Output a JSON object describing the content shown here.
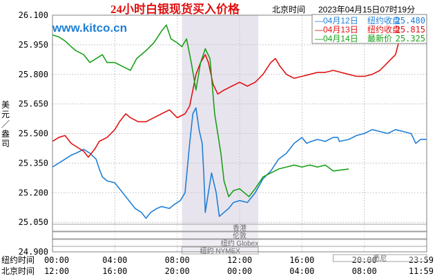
{
  "chart_data": {
    "type": "line",
    "title": "24小时白银现货买入价格",
    "subtitle": "北京时间",
    "timestamp": "2023年04月15日07时19分",
    "watermark": "www.kitco.cn",
    "ylabel": "美元／盎司",
    "ylim": [
      24.9,
      26.1
    ],
    "yticks": [
      "26.100",
      "25.950",
      "25.800",
      "25.650",
      "25.500",
      "25.350",
      "25.200",
      "25.050",
      "24.900"
    ],
    "x_hours": [
      0,
      24
    ],
    "xticks_ny": [
      "00:00",
      "04:00",
      "08:00",
      "12:00",
      "16:00",
      "20:00",
      "23:59"
    ],
    "xticks_bj": [
      "12:00",
      "16:00",
      "20:00",
      "00:00",
      "04:00",
      "08:00",
      "11:59"
    ],
    "xrow_labels": [
      "纽约时间",
      "北京时间"
    ],
    "shaded_session_hours": [
      8.3,
      13.2
    ],
    "grid": true,
    "legend_position": "top-right",
    "legend": [
      {
        "date": "04月12日",
        "label": "纽约收盘",
        "value": "25.480",
        "color": "#1e7fd6"
      },
      {
        "date": "04月13日",
        "label": "纽约收盘",
        "value": "25.815",
        "color": "#e01010"
      },
      {
        "date": "04月14日",
        "label": "最新价",
        "value": "25.325",
        "color": "#18a018"
      }
    ],
    "series": [
      {
        "color": "#1e7fd6",
        "points": [
          [
            0,
            25.33
          ],
          [
            0.4,
            25.35
          ],
          [
            0.8,
            25.37
          ],
          [
            1.2,
            25.39
          ],
          [
            1.5,
            25.4
          ],
          [
            2.0,
            25.42
          ],
          [
            2.4,
            25.4
          ],
          [
            2.8,
            25.37
          ],
          [
            3.0,
            25.32
          ],
          [
            3.2,
            25.28
          ],
          [
            3.5,
            25.26
          ],
          [
            4.0,
            25.25
          ],
          [
            4.5,
            25.2
          ],
          [
            5.0,
            25.15
          ],
          [
            5.3,
            25.12
          ],
          [
            5.7,
            25.1
          ],
          [
            6.0,
            25.07
          ],
          [
            6.3,
            25.1
          ],
          [
            6.7,
            25.12
          ],
          [
            7.0,
            25.13
          ],
          [
            7.5,
            25.12
          ],
          [
            7.8,
            25.14
          ],
          [
            8.2,
            25.16
          ],
          [
            8.5,
            25.2
          ],
          [
            8.8,
            25.45
          ],
          [
            9.0,
            25.6
          ],
          [
            9.2,
            25.63
          ],
          [
            9.4,
            25.52
          ],
          [
            9.6,
            25.45
          ],
          [
            9.7,
            25.3
          ],
          [
            9.8,
            25.1
          ],
          [
            10.0,
            25.2
          ],
          [
            10.2,
            25.3
          ],
          [
            10.5,
            25.2
          ],
          [
            10.7,
            25.08
          ],
          [
            11.0,
            25.1
          ],
          [
            11.3,
            25.12
          ],
          [
            11.6,
            25.15
          ],
          [
            12.0,
            25.16
          ],
          [
            12.5,
            25.15
          ],
          [
            13.0,
            25.2
          ],
          [
            13.5,
            25.27
          ],
          [
            14.0,
            25.31
          ],
          [
            14.5,
            25.37
          ],
          [
            15.0,
            25.4
          ],
          [
            15.5,
            25.45
          ],
          [
            16.0,
            25.48
          ],
          [
            16.3,
            25.45
          ],
          [
            16.6,
            25.46
          ],
          [
            17.0,
            25.47
          ],
          [
            17.5,
            25.46
          ],
          [
            18.0,
            25.48
          ],
          [
            18.3,
            25.48
          ],
          [
            18.4,
            25.46
          ],
          [
            19.0,
            25.47
          ],
          [
            19.5,
            25.49
          ],
          [
            20.0,
            25.5
          ],
          [
            20.5,
            25.52
          ],
          [
            21.0,
            25.51
          ],
          [
            21.5,
            25.5
          ],
          [
            22.0,
            25.52
          ],
          [
            22.5,
            25.51
          ],
          [
            23.0,
            25.5
          ],
          [
            23.3,
            25.45
          ],
          [
            23.6,
            25.47
          ],
          [
            24.0,
            25.47
          ]
        ]
      },
      {
        "color": "#e01010",
        "points": [
          [
            0,
            25.46
          ],
          [
            0.4,
            25.48
          ],
          [
            0.8,
            25.49
          ],
          [
            1.2,
            25.45
          ],
          [
            1.6,
            25.43
          ],
          [
            2.0,
            25.41
          ],
          [
            2.3,
            25.38
          ],
          [
            2.7,
            25.42
          ],
          [
            3.0,
            25.46
          ],
          [
            3.5,
            25.48
          ],
          [
            4.0,
            25.52
          ],
          [
            4.3,
            25.56
          ],
          [
            4.7,
            25.6
          ],
          [
            5.0,
            25.58
          ],
          [
            5.5,
            25.56
          ],
          [
            6.0,
            25.56
          ],
          [
            6.5,
            25.58
          ],
          [
            7.0,
            25.6
          ],
          [
            7.5,
            25.62
          ],
          [
            8.0,
            25.58
          ],
          [
            8.5,
            25.6
          ],
          [
            8.8,
            25.64
          ],
          [
            9.0,
            25.72
          ],
          [
            9.2,
            25.8
          ],
          [
            9.5,
            25.86
          ],
          [
            9.8,
            25.9
          ],
          [
            10.0,
            25.86
          ],
          [
            10.3,
            25.75
          ],
          [
            10.6,
            25.7
          ],
          [
            11.0,
            25.72
          ],
          [
            11.5,
            25.74
          ],
          [
            12.0,
            25.76
          ],
          [
            12.5,
            25.74
          ],
          [
            13.0,
            25.76
          ],
          [
            13.5,
            25.8
          ],
          [
            14.0,
            25.86
          ],
          [
            14.3,
            25.88
          ],
          [
            14.6,
            25.84
          ],
          [
            15.0,
            25.8
          ],
          [
            15.5,
            25.78
          ],
          [
            16.0,
            25.79
          ],
          [
            16.5,
            25.8
          ],
          [
            17.0,
            25.81
          ],
          [
            17.5,
            25.81
          ],
          [
            18.0,
            25.82
          ],
          [
            18.5,
            25.81
          ],
          [
            19.0,
            25.8
          ],
          [
            19.5,
            25.79
          ],
          [
            20.0,
            25.79
          ],
          [
            20.5,
            25.8
          ],
          [
            21.0,
            25.82
          ],
          [
            21.5,
            25.86
          ],
          [
            22.0,
            25.9
          ],
          [
            22.2,
            25.96
          ]
        ]
      },
      {
        "color": "#18a018",
        "points": [
          [
            0,
            26.0
          ],
          [
            0.4,
            25.99
          ],
          [
            0.8,
            25.97
          ],
          [
            1.2,
            25.94
          ],
          [
            1.5,
            25.92
          ],
          [
            2.0,
            25.9
          ],
          [
            2.4,
            25.86
          ],
          [
            2.8,
            25.88
          ],
          [
            3.2,
            25.9
          ],
          [
            3.5,
            25.86
          ],
          [
            4.0,
            25.86
          ],
          [
            4.5,
            25.84
          ],
          [
            5.0,
            25.82
          ],
          [
            5.4,
            25.88
          ],
          [
            6.0,
            25.92
          ],
          [
            6.5,
            25.96
          ],
          [
            7.0,
            26.02
          ],
          [
            7.3,
            26.05
          ],
          [
            7.6,
            25.98
          ],
          [
            8.0,
            25.96
          ],
          [
            8.3,
            25.94
          ],
          [
            8.6,
            25.98
          ],
          [
            8.9,
            25.86
          ],
          [
            9.2,
            25.72
          ],
          [
            9.5,
            25.86
          ],
          [
            9.8,
            25.93
          ],
          [
            10.1,
            25.88
          ],
          [
            10.4,
            25.6
          ],
          [
            10.8,
            25.4
          ],
          [
            11.0,
            25.26
          ],
          [
            11.3,
            25.18
          ],
          [
            11.6,
            25.21
          ],
          [
            12.0,
            25.22
          ],
          [
            12.3,
            25.2
          ],
          [
            12.6,
            25.18
          ],
          [
            13.0,
            25.22
          ],
          [
            13.5,
            25.28
          ],
          [
            14.0,
            25.3
          ],
          [
            14.5,
            25.32
          ],
          [
            15.0,
            25.33
          ],
          [
            15.5,
            25.34
          ],
          [
            16.0,
            25.33
          ],
          [
            16.5,
            25.34
          ],
          [
            17.0,
            25.33
          ],
          [
            17.5,
            25.34
          ],
          [
            18.0,
            25.31
          ],
          [
            19.0,
            25.32
          ]
        ]
      }
    ],
    "footer_rows": [
      {
        "label": "香港",
        "start": 0.0,
        "end": 24.0
      },
      {
        "label": "伦敦",
        "start": 0.0,
        "end": 24.0
      },
      {
        "label": "纽约 Globex",
        "start": 0.0,
        "end": 24.0
      },
      {
        "label": "纽约 NYMEX",
        "start": 8.3,
        "end": 13.2
      },
      {
        "label": "悉尼",
        "start": 18.0,
        "end": 24.0
      }
    ]
  }
}
